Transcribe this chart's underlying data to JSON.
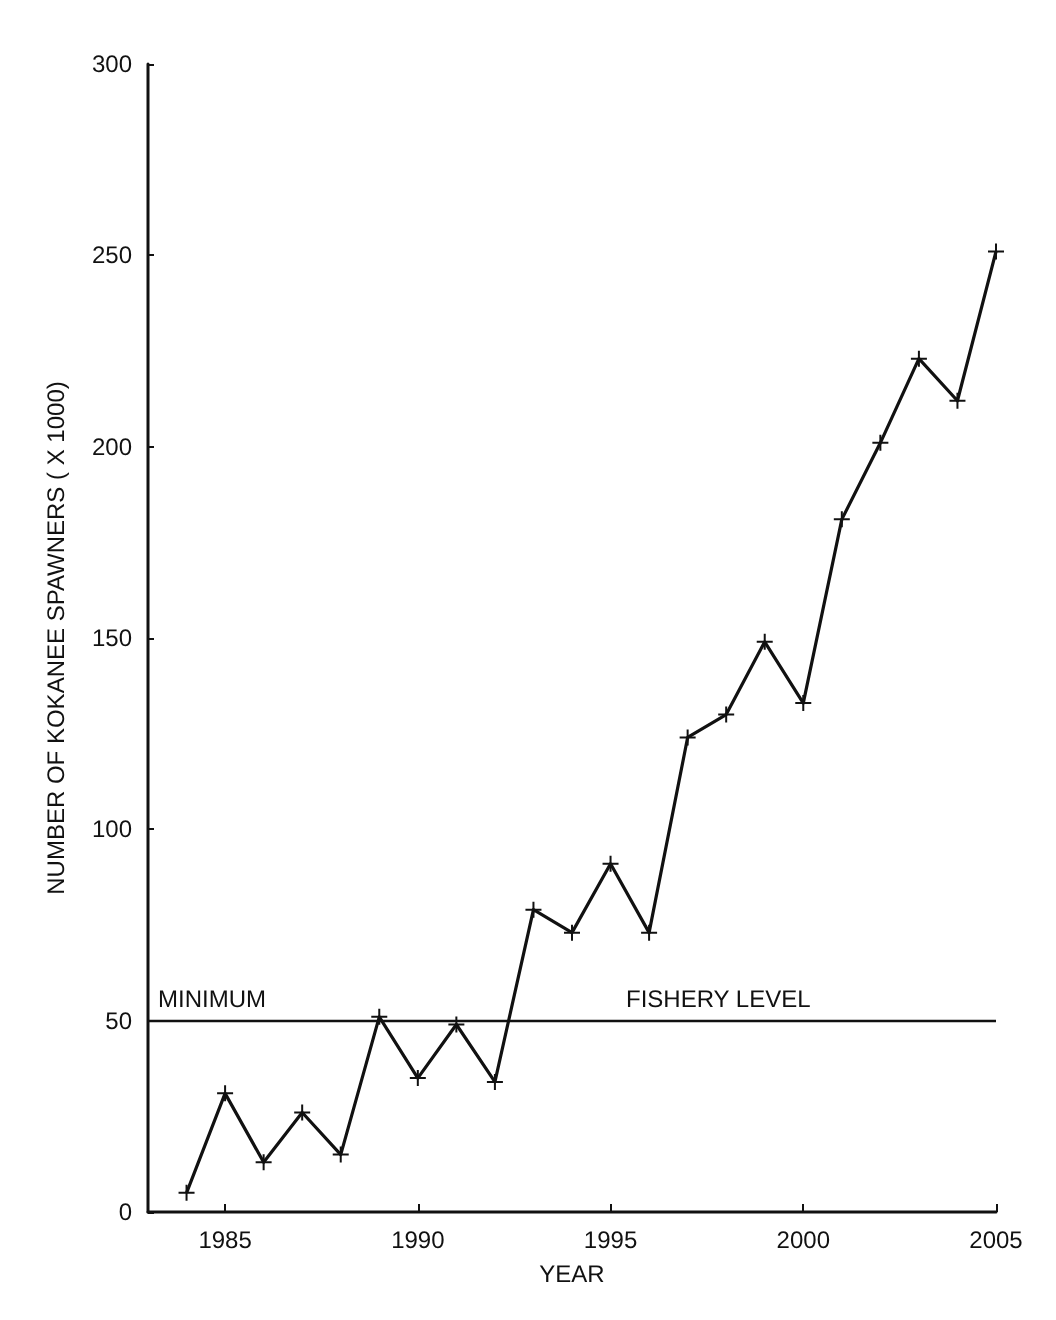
{
  "chart_data": {
    "type": "line",
    "xlabel": "YEAR",
    "ylabel": "NUMBER OF KOKANEE SPAWNERS ( X 1000)",
    "x": [
      1984,
      1985,
      1986,
      1987,
      1988,
      1989,
      1990,
      1991,
      1992,
      1993,
      1994,
      1995,
      1996,
      1997,
      1998,
      1999,
      2000,
      2001,
      2002,
      2003,
      2004,
      2005
    ],
    "series": [
      {
        "color": "#111111",
        "values": [
          5,
          31,
          13,
          26,
          15,
          51,
          35,
          49,
          34,
          79,
          73,
          91,
          73,
          124,
          130,
          149,
          133,
          181,
          201,
          223,
          212,
          251
        ]
      }
    ],
    "xlim": [
      1983,
      2005
    ],
    "xticks": [
      1985,
      1990,
      1995,
      2000,
      2005
    ],
    "ylim": [
      0,
      300
    ],
    "yticks": [
      0,
      50,
      100,
      150,
      200,
      250,
      300
    ],
    "ref_lines": [
      {
        "axis": "y",
        "value": 50,
        "label": "MINIMUM FISHERY LEVEL",
        "color": "#111111"
      }
    ],
    "grid": false,
    "marker": "cross",
    "line_style": "solid"
  }
}
